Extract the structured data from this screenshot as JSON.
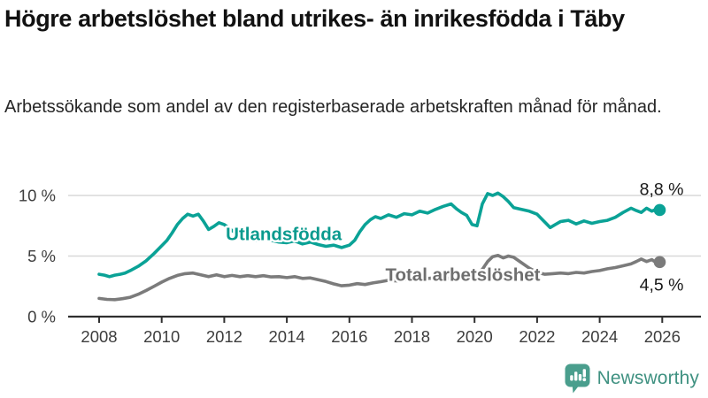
{
  "header": {
    "title": "Högre arbetslöshet bland utrikes- än inrikesfödda i Täby",
    "subtitle": "Arbetssökande som andel av den registerbaserade arbetskraften månad för månad."
  },
  "footer": {
    "brand": "Newsworthy",
    "brand_text_color": "#3f9181",
    "logo_icon": "bar-chart-speech-bubble-icon",
    "logo_color": "#4a9e8d"
  },
  "chart_data": {
    "type": "line",
    "x_unit": "year (monthly observations)",
    "xlim": [
      2008,
      2026.4
    ],
    "ylim": [
      0,
      10.8
    ],
    "grid": "horizontal",
    "x_ticks": [
      2008,
      2010,
      2012,
      2014,
      2016,
      2018,
      2020,
      2022,
      2024,
      2026
    ],
    "y_ticks": [
      {
        "value": 0,
        "label": "0 %"
      },
      {
        "value": 5,
        "label": "5 %"
      },
      {
        "value": 10,
        "label": "10 %"
      }
    ],
    "colors": {
      "gridline": "#d8d8d8",
      "axis": "#2f2f2f",
      "tick_text": "#3d3d3d",
      "end_label_text": "#1a1a1a"
    },
    "series": [
      {
        "name": "Utlandsfödda",
        "color": "#0aa296",
        "label_color": "#0a9a8e",
        "label_anchor": {
          "x": 2012.05,
          "y": 6.3
        },
        "end_label": "8,8 %",
        "end_value": 8.8,
        "points": [
          [
            2008.0,
            3.5
          ],
          [
            2008.17,
            3.42
          ],
          [
            2008.33,
            3.3
          ],
          [
            2008.5,
            3.42
          ],
          [
            2008.67,
            3.5
          ],
          [
            2008.83,
            3.6
          ],
          [
            2009.0,
            3.8
          ],
          [
            2009.25,
            4.15
          ],
          [
            2009.5,
            4.6
          ],
          [
            2009.75,
            5.2
          ],
          [
            2010.0,
            5.85
          ],
          [
            2010.17,
            6.3
          ],
          [
            2010.33,
            6.9
          ],
          [
            2010.5,
            7.6
          ],
          [
            2010.67,
            8.1
          ],
          [
            2010.83,
            8.45
          ],
          [
            2011.0,
            8.3
          ],
          [
            2011.17,
            8.45
          ],
          [
            2011.33,
            7.9
          ],
          [
            2011.5,
            7.2
          ],
          [
            2011.67,
            7.45
          ],
          [
            2011.83,
            7.75
          ],
          [
            2012.0,
            7.6
          ],
          [
            2012.25,
            7.1
          ],
          [
            2012.5,
            6.7
          ],
          [
            2012.75,
            6.45
          ],
          [
            2013.0,
            6.3
          ],
          [
            2013.25,
            6.45
          ],
          [
            2013.5,
            6.3
          ],
          [
            2013.75,
            6.15
          ],
          [
            2014.0,
            6.1
          ],
          [
            2014.25,
            6.25
          ],
          [
            2014.5,
            6.0
          ],
          [
            2014.75,
            6.15
          ],
          [
            2015.0,
            5.95
          ],
          [
            2015.25,
            5.8
          ],
          [
            2015.5,
            5.9
          ],
          [
            2015.75,
            5.7
          ],
          [
            2016.0,
            5.9
          ],
          [
            2016.17,
            6.3
          ],
          [
            2016.33,
            7.0
          ],
          [
            2016.5,
            7.6
          ],
          [
            2016.67,
            8.0
          ],
          [
            2016.83,
            8.25
          ],
          [
            2017.0,
            8.1
          ],
          [
            2017.25,
            8.4
          ],
          [
            2017.5,
            8.2
          ],
          [
            2017.75,
            8.5
          ],
          [
            2018.0,
            8.4
          ],
          [
            2018.25,
            8.7
          ],
          [
            2018.5,
            8.55
          ],
          [
            2018.75,
            8.85
          ],
          [
            2019.0,
            9.1
          ],
          [
            2019.25,
            9.3
          ],
          [
            2019.42,
            8.9
          ],
          [
            2019.58,
            8.6
          ],
          [
            2019.75,
            8.35
          ],
          [
            2019.92,
            7.6
          ],
          [
            2020.08,
            7.5
          ],
          [
            2020.25,
            9.3
          ],
          [
            2020.42,
            10.15
          ],
          [
            2020.58,
            10.0
          ],
          [
            2020.75,
            10.2
          ],
          [
            2020.92,
            9.9
          ],
          [
            2021.08,
            9.5
          ],
          [
            2021.25,
            9.0
          ],
          [
            2021.5,
            8.85
          ],
          [
            2021.75,
            8.7
          ],
          [
            2022.0,
            8.45
          ],
          [
            2022.17,
            8.0
          ],
          [
            2022.42,
            7.35
          ],
          [
            2022.58,
            7.6
          ],
          [
            2022.75,
            7.85
          ],
          [
            2023.0,
            7.95
          ],
          [
            2023.25,
            7.65
          ],
          [
            2023.5,
            7.9
          ],
          [
            2023.75,
            7.7
          ],
          [
            2024.0,
            7.85
          ],
          [
            2024.25,
            7.95
          ],
          [
            2024.5,
            8.2
          ],
          [
            2024.75,
            8.6
          ],
          [
            2025.0,
            8.95
          ],
          [
            2025.17,
            8.75
          ],
          [
            2025.33,
            8.6
          ],
          [
            2025.5,
            8.95
          ],
          [
            2025.67,
            8.7
          ],
          [
            2025.83,
            8.9
          ],
          [
            2025.92,
            8.8
          ]
        ]
      },
      {
        "name": "Total arbetslöshet",
        "color": "#7b7b7b",
        "label_color": "#6e6e6e",
        "label_anchor": {
          "x": 2017.15,
          "y": 2.95
        },
        "end_label": "4,5 %",
        "end_value": 4.5,
        "points": [
          [
            2008.0,
            1.5
          ],
          [
            2008.25,
            1.42
          ],
          [
            2008.5,
            1.4
          ],
          [
            2008.75,
            1.48
          ],
          [
            2009.0,
            1.6
          ],
          [
            2009.25,
            1.85
          ],
          [
            2009.5,
            2.15
          ],
          [
            2009.75,
            2.5
          ],
          [
            2010.0,
            2.85
          ],
          [
            2010.25,
            3.15
          ],
          [
            2010.5,
            3.4
          ],
          [
            2010.75,
            3.55
          ],
          [
            2011.0,
            3.6
          ],
          [
            2011.25,
            3.45
          ],
          [
            2011.5,
            3.3
          ],
          [
            2011.75,
            3.45
          ],
          [
            2012.0,
            3.3
          ],
          [
            2012.25,
            3.4
          ],
          [
            2012.5,
            3.3
          ],
          [
            2012.75,
            3.38
          ],
          [
            2013.0,
            3.3
          ],
          [
            2013.25,
            3.38
          ],
          [
            2013.5,
            3.28
          ],
          [
            2013.75,
            3.3
          ],
          [
            2014.0,
            3.22
          ],
          [
            2014.25,
            3.3
          ],
          [
            2014.5,
            3.15
          ],
          [
            2014.75,
            3.2
          ],
          [
            2015.0,
            3.05
          ],
          [
            2015.25,
            2.9
          ],
          [
            2015.5,
            2.7
          ],
          [
            2015.75,
            2.55
          ],
          [
            2016.0,
            2.6
          ],
          [
            2016.25,
            2.72
          ],
          [
            2016.5,
            2.65
          ],
          [
            2016.75,
            2.78
          ],
          [
            2017.0,
            2.88
          ],
          [
            2017.25,
            3.0
          ],
          [
            2017.5,
            2.95
          ],
          [
            2017.75,
            3.05
          ],
          [
            2018.0,
            3.1
          ],
          [
            2018.25,
            3.25
          ],
          [
            2018.5,
            3.15
          ],
          [
            2018.75,
            3.2
          ],
          [
            2019.0,
            3.1
          ],
          [
            2019.25,
            3.2
          ],
          [
            2019.5,
            3.15
          ],
          [
            2019.75,
            3.25
          ],
          [
            2020.0,
            3.35
          ],
          [
            2020.25,
            3.9
          ],
          [
            2020.42,
            4.55
          ],
          [
            2020.58,
            4.95
          ],
          [
            2020.75,
            5.05
          ],
          [
            2020.92,
            4.85
          ],
          [
            2021.08,
            5.0
          ],
          [
            2021.25,
            4.9
          ],
          [
            2021.5,
            4.45
          ],
          [
            2021.75,
            4.0
          ],
          [
            2022.0,
            3.65
          ],
          [
            2022.25,
            3.5
          ],
          [
            2022.5,
            3.55
          ],
          [
            2022.75,
            3.6
          ],
          [
            2023.0,
            3.55
          ],
          [
            2023.25,
            3.65
          ],
          [
            2023.5,
            3.6
          ],
          [
            2023.75,
            3.72
          ],
          [
            2024.0,
            3.8
          ],
          [
            2024.25,
            3.95
          ],
          [
            2024.5,
            4.05
          ],
          [
            2024.75,
            4.2
          ],
          [
            2025.0,
            4.35
          ],
          [
            2025.17,
            4.55
          ],
          [
            2025.33,
            4.75
          ],
          [
            2025.5,
            4.55
          ],
          [
            2025.67,
            4.7
          ],
          [
            2025.83,
            4.4
          ],
          [
            2025.92,
            4.5
          ]
        ]
      }
    ]
  }
}
